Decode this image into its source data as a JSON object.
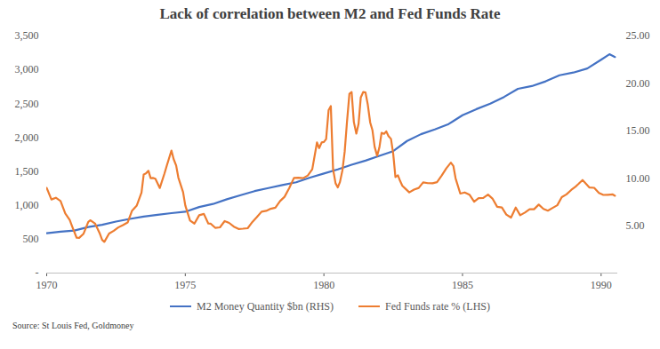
{
  "chart_data": {
    "type": "line",
    "title": "Lack of correlation between M2 and Fed Funds Rate",
    "source": "Source: St Louis Fed, Goldmoney",
    "xlim": [
      1970,
      1990.6
    ],
    "xticks": [
      1970,
      1975,
      1980,
      1985,
      1990
    ],
    "ylim": [
      0,
      3500
    ],
    "yticks": [
      {
        "value": 0,
        "label": "-"
      },
      500,
      {
        "value": 1000,
        "label": "1,000"
      },
      {
        "value": 1500,
        "label": "1,500"
      },
      {
        "value": 2000,
        "label": "2,000"
      },
      {
        "value": 2500,
        "label": "2,500"
      },
      {
        "value": 3000,
        "label": "3,000"
      },
      {
        "value": 3500,
        "label": "3,500"
      }
    ],
    "y2lim": [
      0,
      25
    ],
    "y2ticks": [
      {
        "value": 5,
        "label": "5.00"
      },
      {
        "value": 10,
        "label": "10.00"
      },
      {
        "value": 15,
        "label": "15.00"
      },
      {
        "value": 20,
        "label": "20.00"
      },
      {
        "value": 25,
        "label": "25.00"
      }
    ],
    "grid": false,
    "legend": "bottom",
    "series": [
      {
        "name": "M2 Money Quantity $bn (RHS)",
        "color": "#4472c4",
        "x": [
          1970.0,
          1970.5,
          1971.0,
          1971.5,
          1972.0,
          1972.5,
          1973.0,
          1973.5,
          1974.0,
          1974.5,
          1975.0,
          1975.5,
          1976.0,
          1976.5,
          1977.0,
          1977.5,
          1978.0,
          1978.5,
          1979.0,
          1979.5,
          1980.0,
          1980.5,
          1981.0,
          1981.5,
          1982.0,
          1982.5,
          1983.0,
          1983.5,
          1984.0,
          1984.5,
          1985.0,
          1985.5,
          1986.0,
          1986.5,
          1987.0,
          1987.5,
          1988.0,
          1988.5,
          1989.0,
          1989.5,
          1990.0,
          1990.3,
          1990.5
        ],
        "values": [
          589,
          610,
          628,
          680,
          712,
          760,
          800,
          835,
          860,
          885,
          905,
          975,
          1020,
          1090,
          1150,
          1210,
          1255,
          1300,
          1340,
          1410,
          1470,
          1530,
          1600,
          1660,
          1730,
          1800,
          1950,
          2050,
          2120,
          2200,
          2330,
          2420,
          2500,
          2600,
          2720,
          2760,
          2830,
          2920,
          2960,
          3020,
          3150,
          3230,
          3190
        ]
      },
      {
        "name": "Fed Funds rate % (LHS)",
        "color": "#ed7d31",
        "axis": "y2",
        "x": [
          1970.0,
          1970.17,
          1970.33,
          1970.5,
          1970.67,
          1970.83,
          1970.92,
          1971.08,
          1971.17,
          1971.33,
          1971.5,
          1971.58,
          1971.75,
          1971.92,
          1972.0,
          1972.08,
          1972.25,
          1972.42,
          1972.58,
          1972.75,
          1972.92,
          1973.08,
          1973.25,
          1973.42,
          1973.5,
          1973.58,
          1973.67,
          1973.75,
          1973.83,
          1973.92,
          1974.08,
          1974.25,
          1974.33,
          1974.5,
          1974.58,
          1974.67,
          1974.75,
          1974.92,
          1975.0,
          1975.17,
          1975.33,
          1975.5,
          1975.67,
          1975.83,
          1975.92,
          1976.08,
          1976.25,
          1976.42,
          1976.58,
          1976.75,
          1976.92,
          1977.08,
          1977.25,
          1977.42,
          1977.58,
          1977.75,
          1977.92,
          1978.08,
          1978.25,
          1978.42,
          1978.58,
          1978.75,
          1978.92,
          1979.08,
          1979.25,
          1979.42,
          1979.58,
          1979.75,
          1979.83,
          1979.92,
          1980.0,
          1980.08,
          1980.17,
          1980.25,
          1980.33,
          1980.42,
          1980.5,
          1980.58,
          1980.67,
          1980.75,
          1980.83,
          1980.92,
          1981.0,
          1981.08,
          1981.17,
          1981.25,
          1981.33,
          1981.42,
          1981.5,
          1981.58,
          1981.67,
          1981.75,
          1981.83,
          1981.92,
          1982.0,
          1982.08,
          1982.17,
          1982.25,
          1982.33,
          1982.42,
          1982.5,
          1982.58,
          1982.67,
          1982.75,
          1982.83,
          1982.92,
          1983.08,
          1983.25,
          1983.42,
          1983.58,
          1983.75,
          1983.92,
          1984.08,
          1984.25,
          1984.42,
          1984.58,
          1984.67,
          1984.75,
          1984.92,
          1985.08,
          1985.25,
          1985.42,
          1985.58,
          1985.75,
          1985.92,
          1986.08,
          1986.25,
          1986.42,
          1986.58,
          1986.75,
          1986.92,
          1987.08,
          1987.25,
          1987.42,
          1987.58,
          1987.75,
          1987.92,
          1988.08,
          1988.25,
          1988.42,
          1988.58,
          1988.75,
          1988.92,
          1989.08,
          1989.17,
          1989.33,
          1989.42,
          1989.58,
          1989.75,
          1989.92,
          1990.08,
          1990.25,
          1990.42,
          1990.5
        ],
        "values": [
          8.98,
          7.76,
          7.94,
          7.6,
          6.29,
          5.6,
          4.9,
          3.72,
          3.71,
          4.15,
          5.4,
          5.57,
          5.2,
          4.14,
          3.5,
          3.29,
          4.17,
          4.46,
          4.81,
          5.06,
          5.33,
          6.58,
          7.12,
          8.49,
          10.4,
          10.5,
          10.78,
          10.01,
          10.03,
          9.95,
          8.97,
          10.51,
          11.31,
          12.92,
          12.01,
          11.34,
          10.06,
          8.53,
          7.13,
          5.54,
          5.22,
          6.1,
          6.24,
          5.22,
          5.2,
          4.77,
          4.82,
          5.48,
          5.29,
          4.9,
          4.65,
          4.68,
          4.73,
          5.39,
          5.9,
          6.47,
          6.56,
          6.78,
          6.9,
          7.6,
          8.04,
          8.96,
          10.03,
          10.06,
          10.01,
          10.29,
          10.94,
          13.77,
          13.18,
          13.78,
          13.82,
          14.13,
          17.19,
          17.61,
          10.98,
          9.47,
          9.03,
          9.61,
          10.87,
          12.81,
          15.85,
          18.9,
          19.08,
          15.93,
          14.7,
          15.72,
          18.52,
          19.1,
          19.04,
          17.82,
          15.87,
          15.08,
          13.31,
          12.37,
          13.22,
          14.78,
          14.68,
          14.94,
          14.45,
          14.15,
          12.59,
          10.12,
          10.31,
          9.71,
          9.2,
          8.95,
          8.51,
          8.8,
          8.98,
          9.56,
          9.48,
          9.47,
          9.59,
          10.29,
          11.06,
          11.64,
          11.3,
          9.99,
          8.38,
          8.5,
          8.27,
          7.53,
          7.9,
          7.92,
          8.27,
          7.86,
          6.99,
          6.92,
          6.17,
          5.85,
          6.91,
          6.1,
          6.38,
          6.73,
          6.73,
          7.22,
          6.77,
          6.58,
          6.87,
          7.15,
          8.01,
          8.3,
          8.76,
          9.12,
          9.36,
          9.81,
          9.53,
          9.02,
          8.99,
          8.45,
          8.24,
          8.26,
          8.29,
          8.15
        ]
      }
    ]
  }
}
